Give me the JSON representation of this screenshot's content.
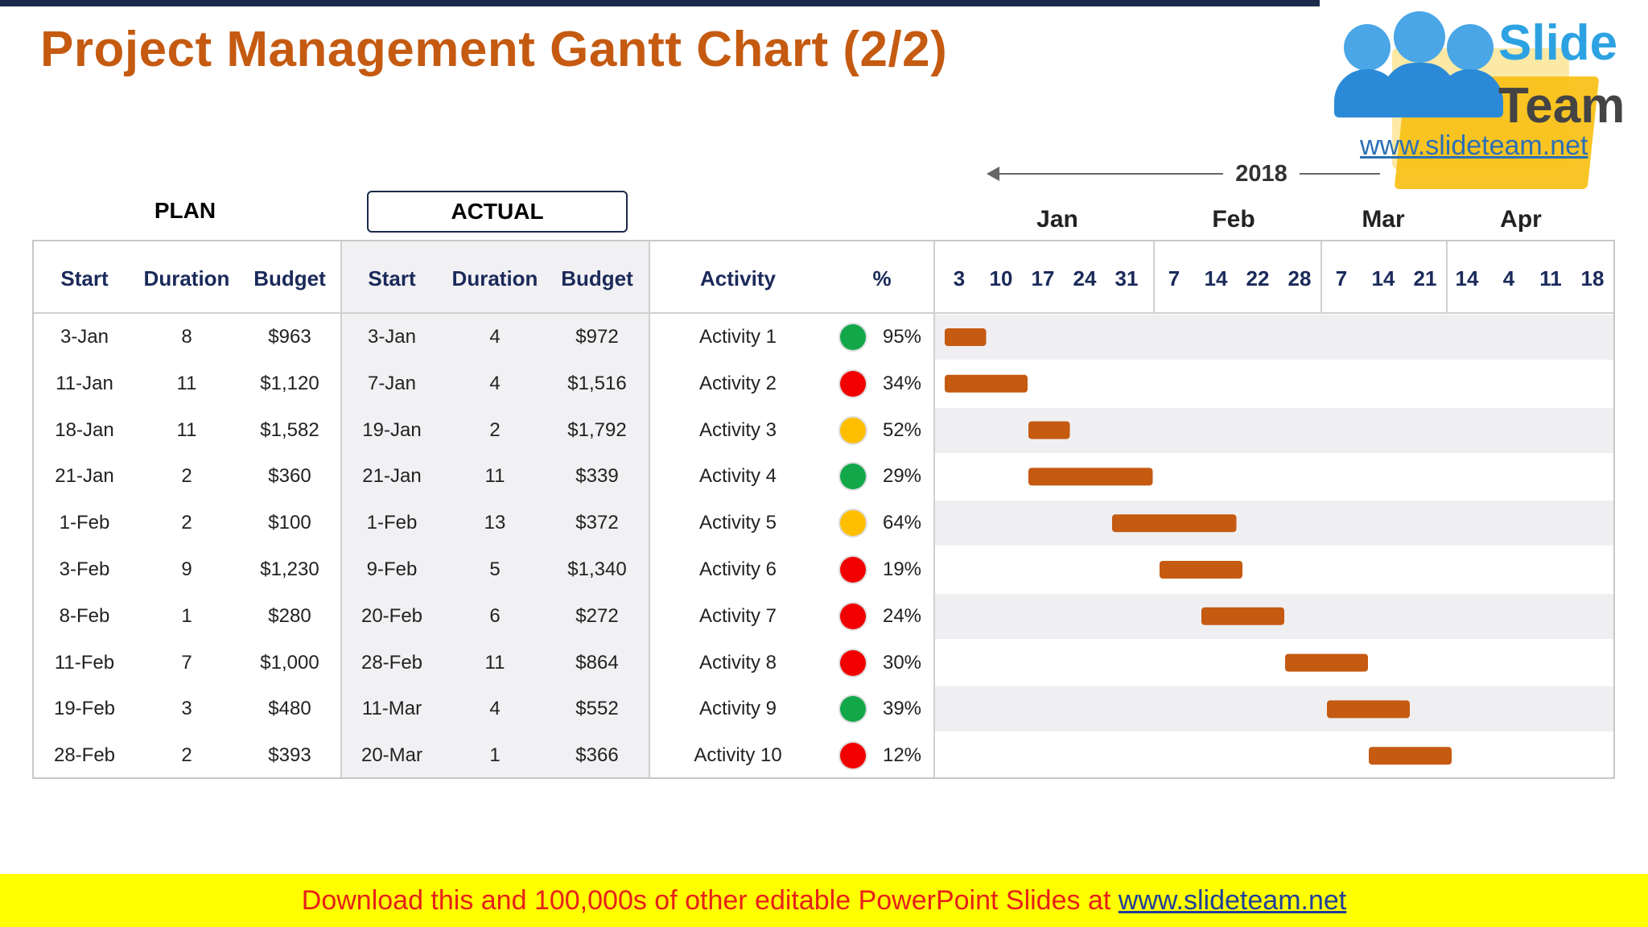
{
  "title": "Project Management Gantt Chart (2/2)",
  "logo": {
    "brand_top": "Slide",
    "brand_bottom": "Team",
    "url": "www.slideteam.net"
  },
  "headers": {
    "plan": "PLAN",
    "actual": "ACTUAL",
    "year": "2018"
  },
  "columns": {
    "plan": [
      "Start",
      "Duration",
      "Budget"
    ],
    "actual": [
      "Start",
      "Duration",
      "Budget"
    ],
    "activity": "Activity",
    "percent": "%"
  },
  "months": [
    "Jan",
    "Feb",
    "Mar",
    "Apr"
  ],
  "weeks": [
    "3",
    "10",
    "17",
    "24",
    "31",
    "7",
    "14",
    "22",
    "28",
    "7",
    "14",
    "21",
    "14",
    "4",
    "11",
    "18"
  ],
  "status_colors": {
    "green": "#12a84a",
    "red": "#f20000",
    "amber": "#ffbf00",
    "bar": "#c55a11"
  },
  "rows": [
    {
      "plan_start": "3-Jan",
      "plan_duration": "8",
      "plan_budget": "$963",
      "actual_start": "3-Jan",
      "actual_duration": "4",
      "actual_budget": "$972",
      "activity": "Activity 1",
      "status": "green",
      "percent": "95%"
    },
    {
      "plan_start": "11-Jan",
      "plan_duration": "11",
      "plan_budget": "$1,120",
      "actual_start": "7-Jan",
      "actual_duration": "4",
      "actual_budget": "$1,516",
      "activity": "Activity 2",
      "status": "red",
      "percent": "34%"
    },
    {
      "plan_start": "18-Jan",
      "plan_duration": "11",
      "plan_budget": "$1,582",
      "actual_start": "19-Jan",
      "actual_duration": "2",
      "actual_budget": "$1,792",
      "activity": "Activity 3",
      "status": "amber",
      "percent": "52%"
    },
    {
      "plan_start": "21-Jan",
      "plan_duration": "2",
      "plan_budget": "$360",
      "actual_start": "21-Jan",
      "actual_duration": "11",
      "actual_budget": "$339",
      "activity": "Activity 4",
      "status": "green",
      "percent": "29%"
    },
    {
      "plan_start": "1-Feb",
      "plan_duration": "2",
      "plan_budget": "$100",
      "actual_start": "1-Feb",
      "actual_duration": "13",
      "actual_budget": "$372",
      "activity": "Activity 5",
      "status": "amber",
      "percent": "64%"
    },
    {
      "plan_start": "3-Feb",
      "plan_duration": "9",
      "plan_budget": "$1,230",
      "actual_start": "9-Feb",
      "actual_duration": "5",
      "actual_budget": "$1,340",
      "activity": "Activity 6",
      "status": "red",
      "percent": "19%"
    },
    {
      "plan_start": "8-Feb",
      "plan_duration": "1",
      "plan_budget": "$280",
      "actual_start": "20-Feb",
      "actual_duration": "6",
      "actual_budget": "$272",
      "activity": "Activity 7",
      "status": "red",
      "percent": "24%"
    },
    {
      "plan_start": "11-Feb",
      "plan_duration": "7",
      "plan_budget": "$1,000",
      "actual_start": "28-Feb",
      "actual_duration": "11",
      "actual_budget": "$864",
      "activity": "Activity 8",
      "status": "red",
      "percent": "30%"
    },
    {
      "plan_start": "19-Feb",
      "plan_duration": "3",
      "plan_budget": "$480",
      "actual_start": "11-Mar",
      "actual_duration": "4",
      "actual_budget": "$552",
      "activity": "Activity 9",
      "status": "green",
      "percent": "39%"
    },
    {
      "plan_start": "28-Feb",
      "plan_duration": "2",
      "plan_budget": "$393",
      "actual_start": "20-Mar",
      "actual_duration": "1",
      "actual_budget": "$366",
      "activity": "Activity 10",
      "status": "red",
      "percent": "12%"
    }
  ],
  "chart_data": {
    "type": "bar",
    "orientation": "horizontal-gantt",
    "categories": [
      "Activity 1",
      "Activity 2",
      "Activity 3",
      "Activity 4",
      "Activity 5",
      "Activity 6",
      "Activity 7",
      "Activity 8",
      "Activity 9",
      "Activity 10"
    ],
    "x_ticks": [
      "3",
      "10",
      "17",
      "24",
      "31",
      "7",
      "14",
      "22",
      "28",
      "7",
      "14",
      "21",
      "14",
      "4",
      "11",
      "18"
    ],
    "bars": [
      {
        "name": "Activity 1",
        "start_week": 0,
        "span_weeks": 1
      },
      {
        "name": "Activity 2",
        "start_week": 0,
        "span_weeks": 2
      },
      {
        "name": "Activity 3",
        "start_week": 2,
        "span_weeks": 1
      },
      {
        "name": "Activity 4",
        "start_week": 2,
        "span_weeks": 3
      },
      {
        "name": "Activity 5",
        "start_week": 4,
        "span_weeks": 3
      },
      {
        "name": "Activity 6",
        "start_week": 5,
        "span_weeks": 2
      },
      {
        "name": "Activity 7",
        "start_week": 6,
        "span_weeks": 2
      },
      {
        "name": "Activity 8",
        "start_week": 8,
        "span_weeks": 2
      },
      {
        "name": "Activity 9",
        "start_week": 9,
        "span_weeks": 2
      },
      {
        "name": "Activity 10",
        "start_week": 10,
        "span_weeks": 2
      }
    ]
  },
  "footer": {
    "text": "Download this and 100,000s of other editable PowerPoint Slides at ",
    "link": "www.slideteam.net"
  }
}
